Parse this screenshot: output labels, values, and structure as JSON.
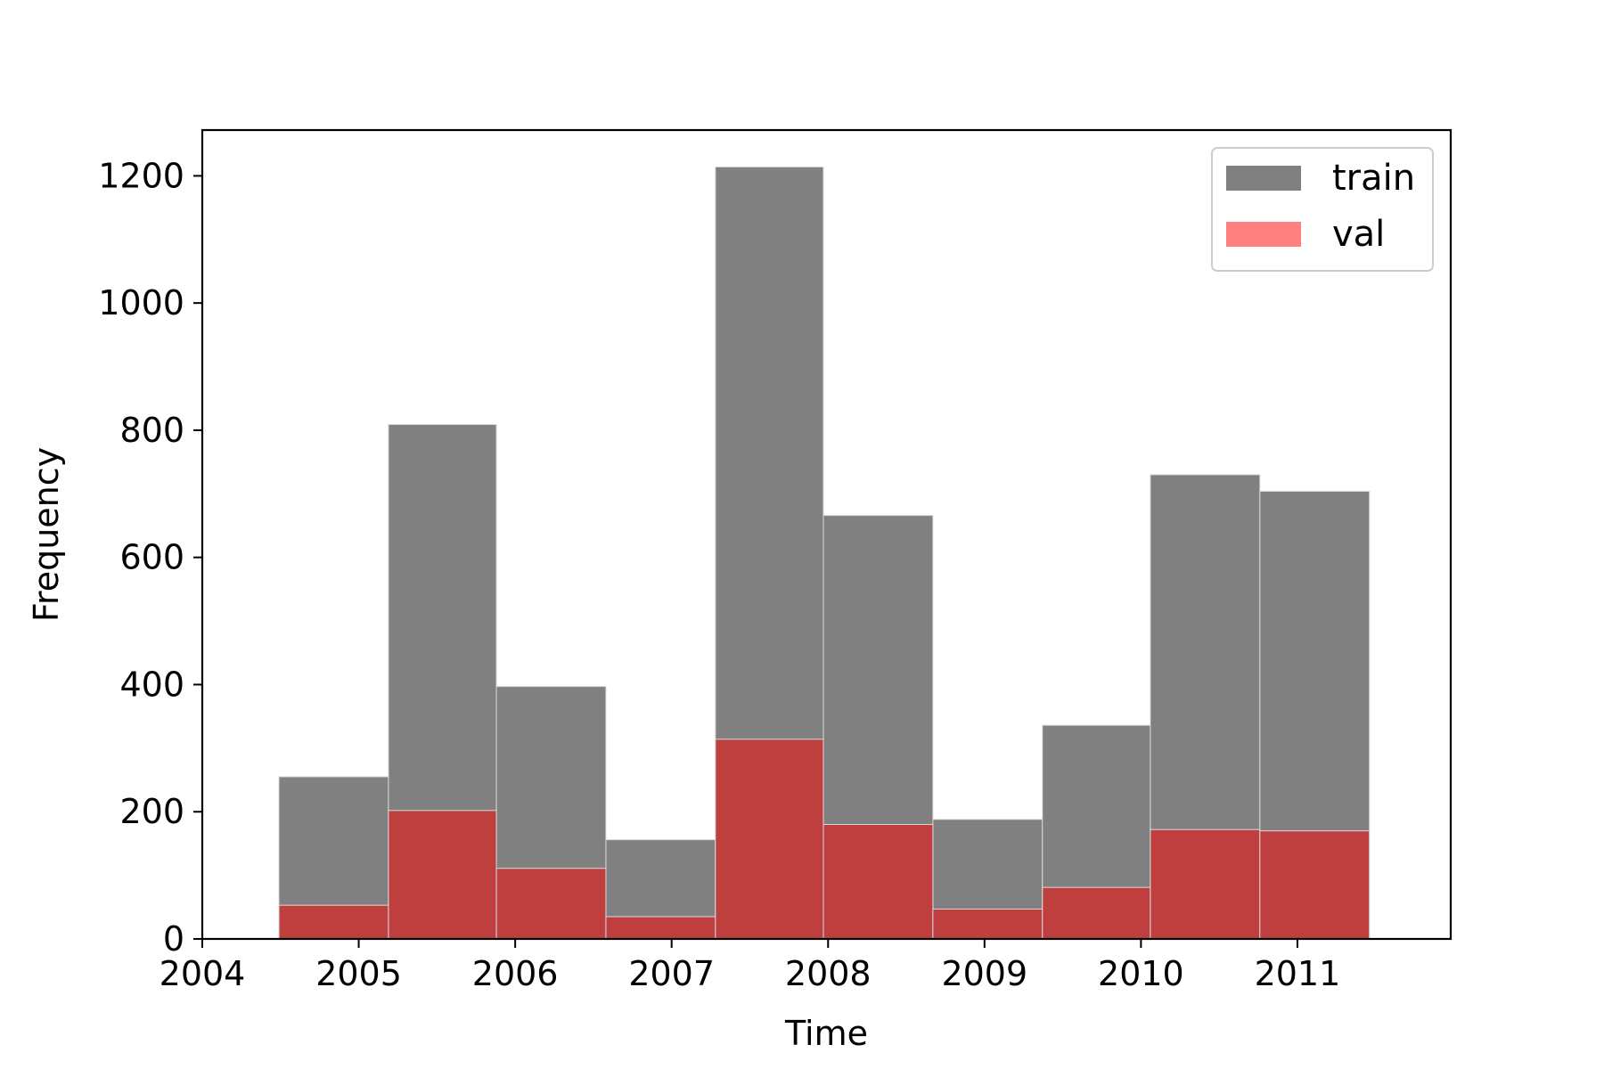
{
  "chart_data": {
    "type": "histogram",
    "xlabel": "Time",
    "ylabel": "Frequency",
    "xlim": [
      2004.0,
      2011.98
    ],
    "ylim": [
      0,
      1272
    ],
    "x_ticks": [
      2004,
      2005,
      2006,
      2007,
      2008,
      2009,
      2010,
      2011
    ],
    "y_ticks": [
      0,
      200,
      400,
      600,
      800,
      1000,
      1200
    ],
    "bin_edges": [
      2004.49,
      2005.19,
      2005.88,
      2006.58,
      2007.28,
      2007.97,
      2008.67,
      2009.37,
      2010.06,
      2010.76,
      2011.46
    ],
    "legend_position": "top-right",
    "grid": false,
    "series": [
      {
        "name": "train",
        "color": "#808080",
        "values": [
          255,
          809,
          397,
          156,
          1214,
          666,
          188,
          336,
          730,
          704
        ]
      },
      {
        "name": "val",
        "color": "#ff8080",
        "draw_color": "#bf3f3f",
        "values": [
          53,
          202,
          111,
          35,
          314,
          180,
          47,
          81,
          172,
          170
        ]
      }
    ]
  }
}
